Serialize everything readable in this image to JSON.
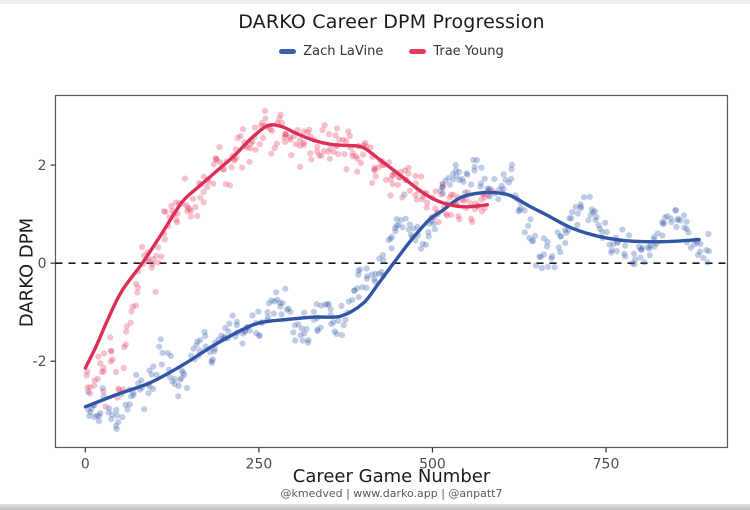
{
  "figure": {
    "title": "DARKO Career DPM Progression",
    "footer": "@kmedved | www.darko.app | @anpatt7"
  },
  "chart_data": {
    "type": "scatter",
    "title": "DARKO Career DPM Progression",
    "xlabel": "Career Game Number",
    "ylabel": "DARKO DPM",
    "xlim": [
      -43,
      925
    ],
    "ylim": [
      -3.76,
      3.42
    ],
    "x_ticks": [
      0,
      250,
      500,
      750
    ],
    "y_ticks": [
      -2,
      0,
      2
    ],
    "grid": "off",
    "reference_line": {
      "y": 0,
      "style": "dashed",
      "color": "#1a1a1a"
    },
    "legend": {
      "position": "top",
      "entries": [
        {
          "label": "Zach LaVine",
          "color": "#3b5fae"
        },
        {
          "label": "Trae Young",
          "color": "#e23b61"
        }
      ]
    },
    "series": [
      {
        "name": "Zach LaVine",
        "color": "#3155a5",
        "scatter_color": "#3b5fae",
        "games_range": [
          0,
          900
        ],
        "trend_line": [
          [
            0,
            -2.93
          ],
          [
            45,
            -2.68
          ],
          [
            93,
            -2.44
          ],
          [
            140,
            -2.08
          ],
          [
            180,
            -1.72
          ],
          [
            220,
            -1.4
          ],
          [
            250,
            -1.22
          ],
          [
            290,
            -1.15
          ],
          [
            330,
            -1.1
          ],
          [
            368,
            -1.08
          ],
          [
            400,
            -0.82
          ],
          [
            422,
            -0.42
          ],
          [
            445,
            0.02
          ],
          [
            470,
            0.48
          ],
          [
            495,
            0.88
          ],
          [
            515,
            1.08
          ],
          [
            538,
            1.32
          ],
          [
            562,
            1.42
          ],
          [
            588,
            1.44
          ],
          [
            612,
            1.38
          ],
          [
            640,
            1.16
          ],
          [
            665,
            0.98
          ],
          [
            697,
            0.74
          ],
          [
            730,
            0.58
          ],
          [
            765,
            0.48
          ],
          [
            800,
            0.44
          ],
          [
            840,
            0.44
          ],
          [
            884,
            0.48
          ]
        ],
        "raw_path": [
          [
            0,
            -2.9
          ],
          [
            14,
            -3.15
          ],
          [
            28,
            -2.7
          ],
          [
            42,
            -3.25
          ],
          [
            56,
            -2.95
          ],
          [
            70,
            -2.5
          ],
          [
            84,
            -2.75
          ],
          [
            98,
            -2.15
          ],
          [
            112,
            -1.8
          ],
          [
            126,
            -2.3
          ],
          [
            140,
            -2.45
          ],
          [
            154,
            -1.95
          ],
          [
            168,
            -1.6
          ],
          [
            182,
            -1.85
          ],
          [
            196,
            -1.6
          ],
          [
            210,
            -1.3
          ],
          [
            224,
            -1.25
          ],
          [
            238,
            -1.35
          ],
          [
            252,
            -1.2
          ],
          [
            266,
            -1.0
          ],
          [
            280,
            -0.8
          ],
          [
            294,
            -1.0
          ],
          [
            308,
            -1.5
          ],
          [
            322,
            -1.3
          ],
          [
            336,
            -1.0
          ],
          [
            350,
            -0.95
          ],
          [
            364,
            -1.4
          ],
          [
            378,
            -1.0
          ],
          [
            392,
            -0.5
          ],
          [
            406,
            -0.2
          ],
          [
            420,
            -0.3
          ],
          [
            434,
            0.3
          ],
          [
            448,
            0.7
          ],
          [
            460,
            1.1
          ],
          [
            472,
            0.6
          ],
          [
            484,
            0.2
          ],
          [
            496,
            0.6
          ],
          [
            508,
            1.1
          ],
          [
            520,
            1.7
          ],
          [
            532,
            1.9
          ],
          [
            544,
            1.5
          ],
          [
            556,
            1.8
          ],
          [
            568,
            1.95
          ],
          [
            580,
            1.6
          ],
          [
            592,
            1.5
          ],
          [
            604,
            1.7
          ],
          [
            616,
            1.6
          ],
          [
            628,
            1.1
          ],
          [
            640,
            0.6
          ],
          [
            652,
            0.25
          ],
          [
            664,
            0.1
          ],
          [
            676,
            0.25
          ],
          [
            688,
            0.5
          ],
          [
            700,
            0.9
          ],
          [
            712,
            1.2
          ],
          [
            724,
            1.2
          ],
          [
            736,
            0.9
          ],
          [
            748,
            0.6
          ],
          [
            760,
            0.4
          ],
          [
            772,
            0.3
          ],
          [
            784,
            0.25
          ],
          [
            796,
            0.15
          ],
          [
            808,
            0.2
          ],
          [
            820,
            0.45
          ],
          [
            832,
            0.8
          ],
          [
            844,
            1.1
          ],
          [
            856,
            0.9
          ],
          [
            868,
            0.65
          ],
          [
            880,
            0.35
          ],
          [
            892,
            0.2
          ],
          [
            900,
            0.55
          ]
        ],
        "scatter": {
          "count": 390,
          "x_jitter": 4,
          "y_sd": 0.17,
          "opacity": 0.32
        }
      },
      {
        "name": "Trae Young",
        "color": "#dc2f55",
        "scatter_color": "#e23b61",
        "games_range": [
          0,
          583
        ],
        "trend_line": [
          [
            0,
            -2.14
          ],
          [
            16,
            -1.68
          ],
          [
            32,
            -1.16
          ],
          [
            52,
            -0.58
          ],
          [
            82,
            0.0
          ],
          [
            110,
            0.6
          ],
          [
            139,
            1.24
          ],
          [
            165,
            1.58
          ],
          [
            191,
            1.9
          ],
          [
            215,
            2.2
          ],
          [
            240,
            2.56
          ],
          [
            262,
            2.8
          ],
          [
            282,
            2.79
          ],
          [
            305,
            2.64
          ],
          [
            330,
            2.5
          ],
          [
            355,
            2.42
          ],
          [
            378,
            2.4
          ],
          [
            400,
            2.36
          ],
          [
            425,
            2.1
          ],
          [
            453,
            1.8
          ],
          [
            478,
            1.52
          ],
          [
            500,
            1.32
          ],
          [
            522,
            1.2
          ],
          [
            548,
            1.15
          ],
          [
            579,
            1.19
          ]
        ],
        "raw_path": [
          [
            0,
            -2.2
          ],
          [
            10,
            -2.75
          ],
          [
            20,
            -1.95
          ],
          [
            30,
            -2.45
          ],
          [
            40,
            -1.7
          ],
          [
            50,
            -2.85
          ],
          [
            60,
            -1.25
          ],
          [
            70,
            -0.65
          ],
          [
            80,
            -0.2
          ],
          [
            90,
            0.1
          ],
          [
            100,
            -0.15
          ],
          [
            110,
            0.45
          ],
          [
            120,
            0.8
          ],
          [
            130,
            1.2
          ],
          [
            140,
            1.3
          ],
          [
            150,
            1.1
          ],
          [
            160,
            1.45
          ],
          [
            170,
            1.3
          ],
          [
            180,
            1.75
          ],
          [
            190,
            2.0
          ],
          [
            200,
            1.85
          ],
          [
            210,
            2.15
          ],
          [
            220,
            2.3
          ],
          [
            230,
            2.5
          ],
          [
            240,
            2.4
          ],
          [
            250,
            2.7
          ],
          [
            260,
            2.9
          ],
          [
            270,
            2.7
          ],
          [
            280,
            2.95
          ],
          [
            290,
            2.55
          ],
          [
            300,
            2.75
          ],
          [
            310,
            2.45
          ],
          [
            320,
            2.65
          ],
          [
            330,
            2.35
          ],
          [
            340,
            2.5
          ],
          [
            350,
            2.3
          ],
          [
            360,
            2.5
          ],
          [
            370,
            2.25
          ],
          [
            380,
            2.45
          ],
          [
            390,
            2.15
          ],
          [
            400,
            2.45
          ],
          [
            410,
            2.05
          ],
          [
            420,
            1.85
          ],
          [
            430,
            2.05
          ],
          [
            440,
            1.65
          ],
          [
            450,
            1.85
          ],
          [
            460,
            1.55
          ],
          [
            470,
            1.35
          ],
          [
            480,
            1.55
          ],
          [
            490,
            1.25
          ],
          [
            500,
            1.15
          ],
          [
            510,
            1.35
          ],
          [
            520,
            1.1
          ],
          [
            530,
            1.25
          ],
          [
            540,
            1.05
          ],
          [
            550,
            1.2
          ],
          [
            560,
            1.1
          ],
          [
            570,
            1.3
          ],
          [
            580,
            1.2
          ]
        ],
        "scatter": {
          "count": 280,
          "x_jitter": 4,
          "y_sd": 0.22,
          "opacity": 0.32
        }
      }
    ]
  }
}
